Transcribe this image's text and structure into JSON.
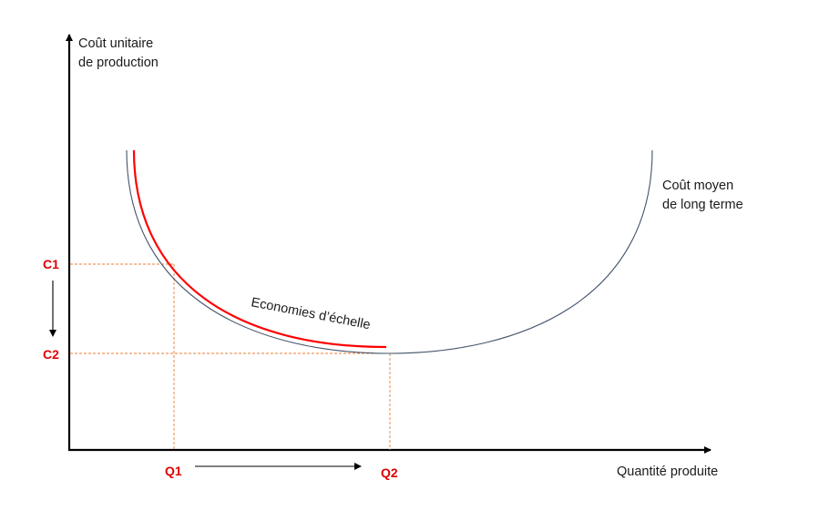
{
  "y_axis_title": [
    "Coût unitaire",
    "de production"
  ],
  "x_axis_title": "Quantité produite",
  "curve_label": [
    "Coût moyen",
    "de long terme"
  ],
  "economies_label": "Economies d’échelle",
  "ticks": {
    "c1": "C1",
    "c2": "C2",
    "q1": "Q1",
    "q2": "Q2"
  },
  "colors": {
    "axis": "#000000",
    "curve": "#44546a",
    "highlight": "#ff0000",
    "guides": "#ed7d31",
    "tick_labels": "#e00000"
  }
}
